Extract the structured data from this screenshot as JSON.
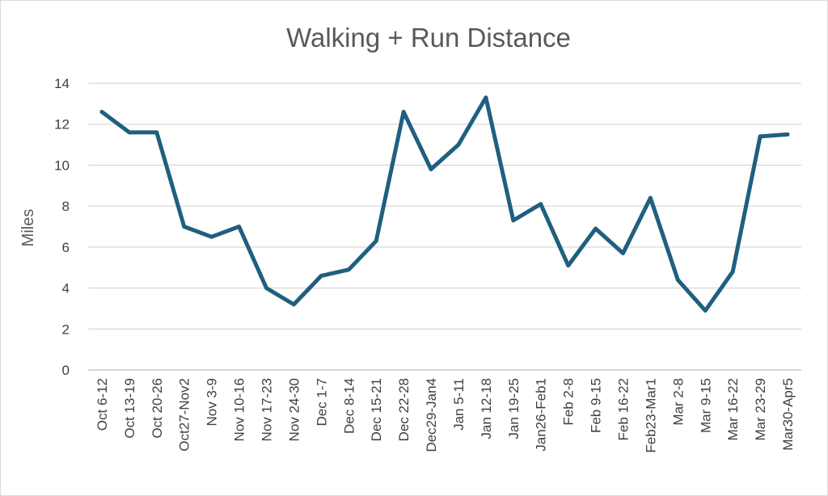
{
  "chart_data": {
    "type": "line",
    "title": "Walking + Run Distance",
    "xlabel": "",
    "ylabel": "Miles",
    "ylim": [
      0,
      14
    ],
    "yticks": [
      0,
      2,
      4,
      6,
      8,
      10,
      12,
      14
    ],
    "grid": true,
    "legend": "none",
    "categories": [
      "Oct 6-12",
      "Oct 13-19",
      "Oct 20-26",
      "Oct27-Nov2",
      "Nov 3-9",
      "Nov 10-16",
      "Nov 17-23",
      "Nov 24-30",
      "Dec 1-7",
      "Dec 8-14",
      "Dec 15-21",
      "Dec 22-28",
      "Dec29-Jan4",
      "Jan 5-11",
      "Jan 12-18",
      "Jan 19-25",
      "Jan26-Feb1",
      "Feb 2-8",
      "Feb 9-15",
      "Feb 16-22",
      "Feb23-Mar1",
      "Mar 2-8",
      "Mar 9-15",
      "Mar 16-22",
      "Mar 23-29",
      "Mar30-Apr5"
    ],
    "series": [
      {
        "color": "#1f5f7f",
        "values": [
          12.6,
          11.6,
          11.6,
          7.0,
          6.5,
          7.0,
          4.0,
          3.2,
          4.6,
          4.9,
          6.3,
          12.6,
          9.8,
          11.0,
          13.3,
          7.3,
          8.1,
          5.1,
          6.9,
          5.7,
          8.4,
          4.4,
          2.9,
          4.8,
          11.4,
          11.5
        ]
      }
    ]
  }
}
